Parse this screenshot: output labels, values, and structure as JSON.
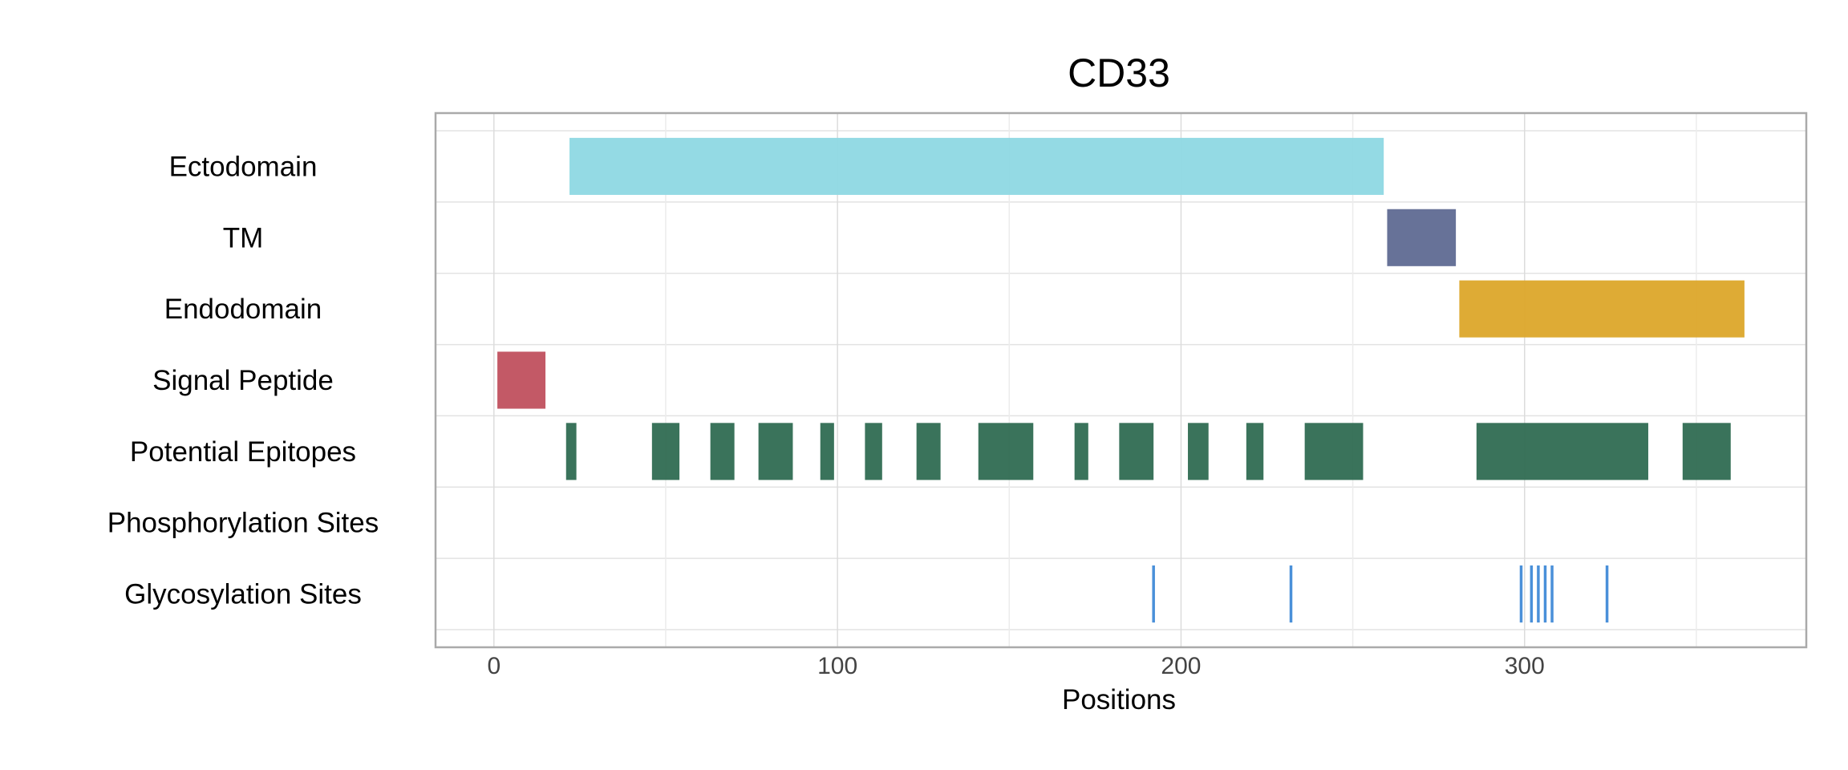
{
  "chart_data": {
    "type": "bar",
    "subtype": "protein-feature-track",
    "title": "CD33",
    "xlabel": "Positions",
    "ylabel": "",
    "xlim": [
      -17,
      382
    ],
    "xticks": [
      0,
      100,
      200,
      300
    ],
    "grid": true,
    "tracks": [
      {
        "label": "Ectodomain",
        "color": "#8ed8e3",
        "segments": [
          [
            22,
            259
          ]
        ]
      },
      {
        "label": "TM",
        "color": "#5f6a92",
        "segments": [
          [
            260,
            280
          ]
        ]
      },
      {
        "label": "Endodomain",
        "color": "#dca62a",
        "segments": [
          [
            281,
            364
          ]
        ]
      },
      {
        "label": "Signal Peptide",
        "color": "#c0505e",
        "segments": [
          [
            1,
            15
          ]
        ]
      },
      {
        "label": "Potential Epitopes",
        "color": "#2f6b52",
        "segments": [
          [
            21,
            24
          ],
          [
            46,
            54
          ],
          [
            63,
            70
          ],
          [
            77,
            87
          ],
          [
            95,
            99
          ],
          [
            108,
            113
          ],
          [
            123,
            130
          ],
          [
            141,
            157
          ],
          [
            169,
            173
          ],
          [
            182,
            192
          ],
          [
            202,
            208
          ],
          [
            219,
            224
          ],
          [
            236,
            253
          ],
          [
            286,
            336
          ],
          [
            346,
            360
          ]
        ]
      },
      {
        "label": "Phosphorylation Sites",
        "color": "#4a90d9",
        "segments": []
      },
      {
        "label": "Glycosylation Sites",
        "color": "#4a90d9",
        "sites": [
          192,
          232,
          299,
          302,
          304,
          306,
          308,
          324
        ]
      }
    ]
  }
}
